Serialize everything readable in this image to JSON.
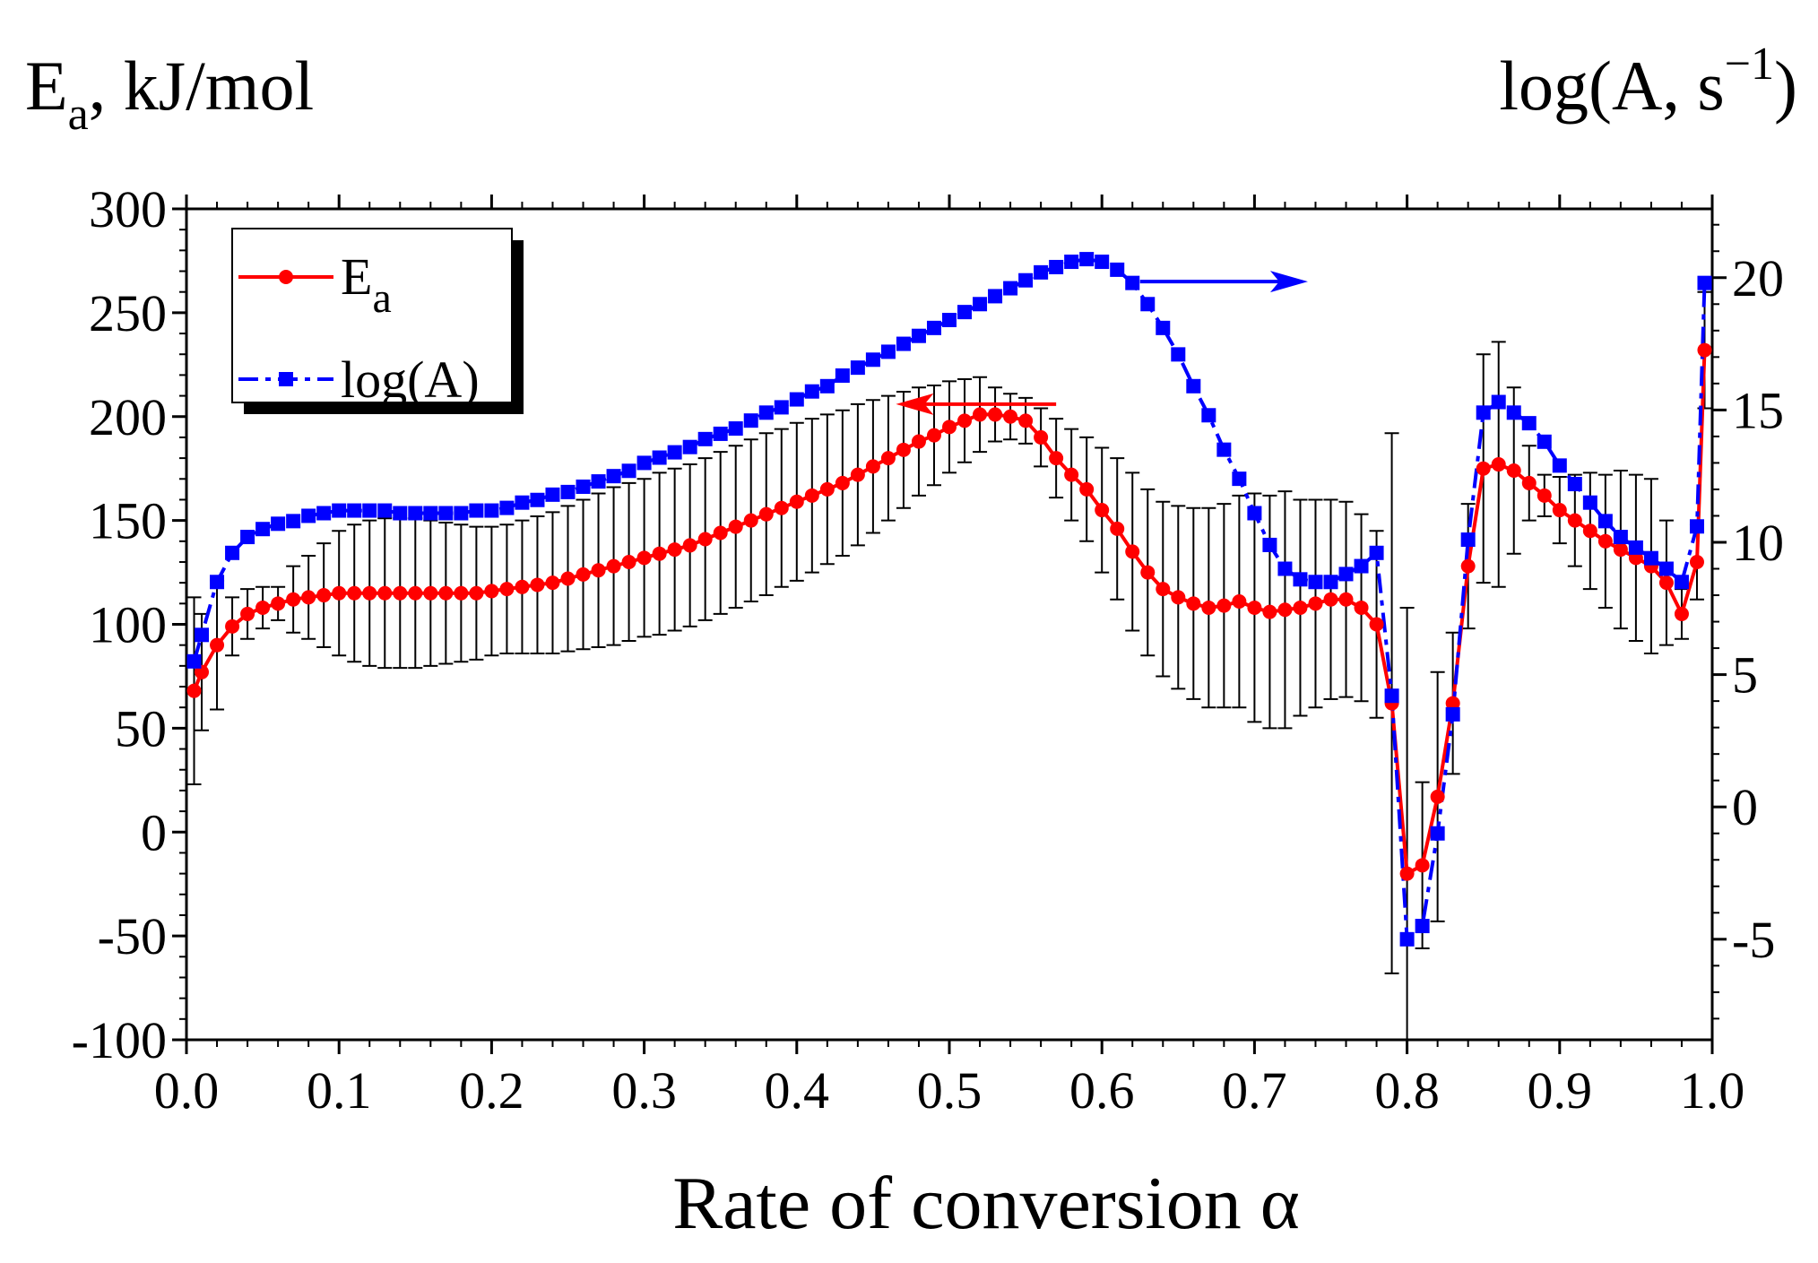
{
  "chart_data": {
    "type": "line",
    "xlabel": "Rate of conversion α",
    "ylabel_left": {
      "main": "E",
      "sub": "a",
      "rest": ", kJ/mol"
    },
    "ylabel_right": {
      "main": "log(A, s",
      "sup": "−1",
      "rest": ")"
    },
    "xlim": [
      0.0,
      1.0
    ],
    "ylim_left": [
      -100,
      300
    ],
    "ylim_right": [
      -8.8,
      22.6
    ],
    "x_ticks": [
      "0.0",
      "0.1",
      "0.2",
      "0.3",
      "0.4",
      "0.5",
      "0.6",
      "0.7",
      "0.8",
      "0.9",
      "1.0"
    ],
    "y_left_ticks": [
      "-100",
      "-50",
      "0",
      "50",
      "100",
      "150",
      "200",
      "250",
      "300"
    ],
    "y_right_ticks": [
      "-5",
      "0",
      "5",
      "10",
      "15",
      "20"
    ],
    "legend": [
      {
        "label_main": "E",
        "label_sub": "a",
        "color": "#ff0000",
        "marker": "circle"
      },
      {
        "label_main": "log(A)",
        "label_sub": "",
        "color": "#0000ff",
        "marker": "square"
      }
    ],
    "arrows": [
      {
        "series": "E_a",
        "direction": "left",
        "color": "#ff0000",
        "x_start": 0.57,
        "x_end": 0.465,
        "y_left": 206
      },
      {
        "series": "log(A)",
        "direction": "right",
        "color": "#0000ff",
        "x_start": 0.625,
        "x_end": 0.735,
        "y_left": 265
      }
    ],
    "series": [
      {
        "name": "E_a",
        "axis": "left",
        "color": "#ff0000",
        "x": [
          0.005,
          0.01,
          0.02,
          0.03,
          0.04,
          0.05,
          0.06,
          0.07,
          0.08,
          0.09,
          0.1,
          0.11,
          0.12,
          0.13,
          0.14,
          0.15,
          0.16,
          0.17,
          0.18,
          0.19,
          0.2,
          0.21,
          0.22,
          0.23,
          0.24,
          0.25,
          0.26,
          0.27,
          0.28,
          0.29,
          0.3,
          0.31,
          0.32,
          0.33,
          0.34,
          0.35,
          0.36,
          0.37,
          0.38,
          0.39,
          0.4,
          0.41,
          0.42,
          0.43,
          0.44,
          0.45,
          0.46,
          0.47,
          0.48,
          0.49,
          0.5,
          0.51,
          0.52,
          0.53,
          0.54,
          0.55,
          0.56,
          0.57,
          0.58,
          0.59,
          0.6,
          0.61,
          0.62,
          0.63,
          0.64,
          0.65,
          0.66,
          0.67,
          0.68,
          0.69,
          0.7,
          0.71,
          0.72,
          0.73,
          0.74,
          0.75,
          0.76,
          0.77,
          0.78,
          0.79,
          0.8,
          0.81,
          0.82,
          0.83,
          0.84,
          0.85,
          0.86,
          0.87,
          0.88,
          0.89,
          0.9,
          0.91,
          0.92,
          0.93,
          0.94,
          0.95,
          0.96,
          0.97,
          0.98,
          0.99,
          0.995
        ],
        "y": [
          68,
          77,
          90,
          99,
          105,
          108,
          110,
          112,
          113,
          114,
          115,
          115,
          115,
          115,
          115,
          115,
          115,
          115,
          115,
          115,
          116,
          117,
          118,
          119,
          120,
          122,
          124,
          126,
          128,
          130,
          132,
          134,
          136,
          138,
          141,
          144,
          147,
          150,
          153,
          156,
          159,
          162,
          165,
          168,
          172,
          176,
          180,
          184,
          188,
          191,
          195,
          198,
          201,
          201,
          200,
          198,
          190,
          180,
          172,
          165,
          155,
          146,
          135,
          125,
          117,
          113,
          110,
          108,
          109,
          111,
          108,
          106,
          107,
          108,
          110,
          112,
          112,
          108,
          100,
          62,
          -20,
          -16,
          17,
          62,
          128,
          175,
          177,
          174,
          168,
          162,
          155,
          150,
          145,
          140,
          136,
          132,
          128,
          120,
          105,
          130,
          232
        ],
        "err": [
          45,
          28,
          31,
          14,
          12,
          10,
          8,
          16,
          20,
          25,
          30,
          33,
          35,
          36,
          36,
          36,
          35,
          34,
          33,
          32,
          31,
          31,
          32,
          33,
          34,
          35,
          36,
          37,
          38,
          38,
          38,
          39,
          39,
          39,
          39,
          39,
          39,
          39,
          39,
          38,
          38,
          37,
          36,
          35,
          34,
          32,
          30,
          28,
          26,
          24,
          22,
          20,
          18,
          13,
          11,
          11,
          14,
          19,
          22,
          25,
          30,
          34,
          38,
          40,
          42,
          44,
          46,
          48,
          49,
          51,
          55,
          56,
          57,
          52,
          50,
          48,
          47,
          45,
          45,
          130,
          128,
          40,
          60,
          34,
          30,
          55,
          59,
          40,
          18,
          10,
          16,
          22,
          28,
          32,
          38,
          40,
          42,
          30,
          12,
          18,
          28
        ]
      },
      {
        "name": "log(A)",
        "axis": "right",
        "color": "#0000ff",
        "x": [
          0.005,
          0.01,
          0.02,
          0.03,
          0.04,
          0.05,
          0.06,
          0.07,
          0.08,
          0.09,
          0.1,
          0.11,
          0.12,
          0.13,
          0.14,
          0.15,
          0.16,
          0.17,
          0.18,
          0.19,
          0.2,
          0.21,
          0.22,
          0.23,
          0.24,
          0.25,
          0.26,
          0.27,
          0.28,
          0.29,
          0.3,
          0.31,
          0.32,
          0.33,
          0.34,
          0.35,
          0.36,
          0.37,
          0.38,
          0.39,
          0.4,
          0.41,
          0.42,
          0.43,
          0.44,
          0.45,
          0.46,
          0.47,
          0.48,
          0.49,
          0.5,
          0.51,
          0.52,
          0.53,
          0.54,
          0.55,
          0.56,
          0.57,
          0.58,
          0.59,
          0.6,
          0.61,
          0.62,
          0.63,
          0.64,
          0.65,
          0.66,
          0.67,
          0.68,
          0.69,
          0.7,
          0.71,
          0.72,
          0.73,
          0.74,
          0.75,
          0.76,
          0.77,
          0.78,
          0.79,
          0.8,
          0.81,
          0.82,
          0.83,
          0.84,
          0.85,
          0.86,
          0.87,
          0.88,
          0.89,
          0.9,
          0.91,
          0.92,
          0.93,
          0.94,
          0.95,
          0.96,
          0.97,
          0.98,
          0.99,
          0.995
        ],
        "y": [
          5.5,
          6.5,
          8.5,
          9.6,
          10.2,
          10.5,
          10.7,
          10.8,
          11.0,
          11.1,
          11.2,
          11.2,
          11.2,
          11.2,
          11.1,
          11.1,
          11.1,
          11.1,
          11.1,
          11.2,
          11.2,
          11.3,
          11.5,
          11.6,
          11.8,
          11.9,
          12.1,
          12.3,
          12.5,
          12.7,
          13.0,
          13.2,
          13.4,
          13.6,
          13.9,
          14.1,
          14.3,
          14.6,
          14.9,
          15.1,
          15.4,
          15.7,
          15.9,
          16.3,
          16.6,
          16.9,
          17.2,
          17.5,
          17.8,
          18.1,
          18.4,
          18.7,
          19.0,
          19.3,
          19.6,
          19.9,
          20.2,
          20.4,
          20.6,
          20.7,
          20.6,
          20.3,
          19.8,
          19.0,
          18.1,
          17.1,
          15.9,
          14.8,
          13.5,
          12.4,
          11.1,
          9.9,
          9.0,
          8.6,
          8.5,
          8.5,
          8.8,
          9.1,
          9.6,
          4.2,
          -5.0,
          -4.5,
          -1.0,
          3.5,
          10.1,
          14.9,
          15.3,
          14.9,
          14.5,
          13.8,
          12.9,
          12.2,
          11.5,
          10.8,
          10.2,
          9.8,
          9.4,
          9.0,
          8.5,
          10.6,
          19.8
        ]
      }
    ]
  }
}
